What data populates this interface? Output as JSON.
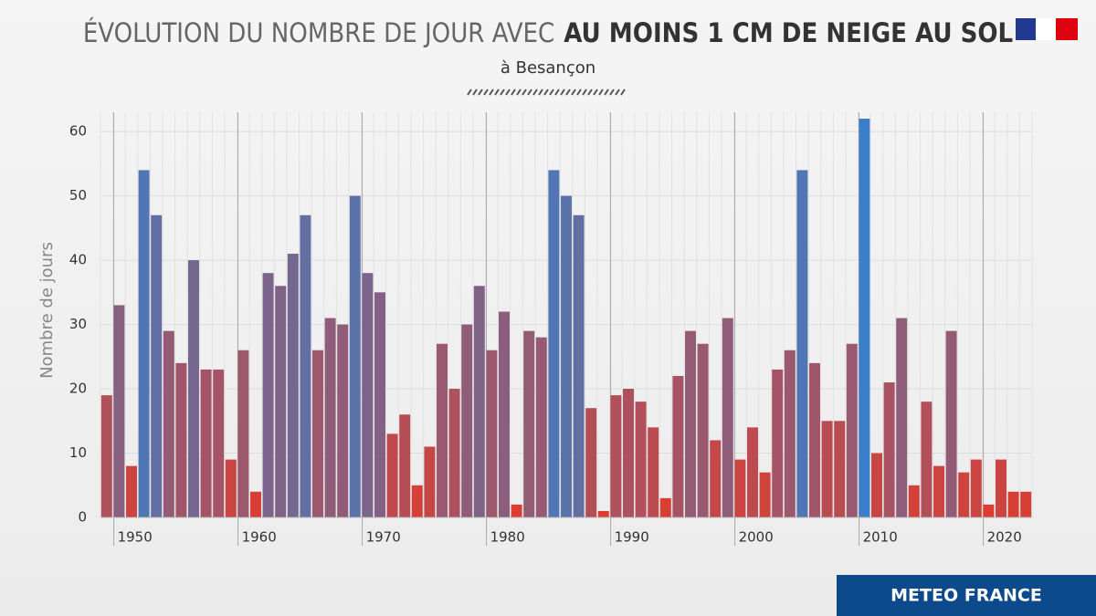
{
  "chart_data": {
    "type": "bar",
    "title_light": "ÉVOLUTION DU NOMBRE DE JOUR AVEC",
    "title_bold": "AU MOINS 1 CM DE NEIGE AU SOL",
    "subtitle": "à Besançon",
    "y_label": "Nombre de jours",
    "source": "METEO FRANCE",
    "categories": [
      null,
      "1950",
      null,
      null,
      null,
      null,
      null,
      null,
      null,
      null,
      null,
      "1960",
      null,
      null,
      null,
      null,
      null,
      null,
      null,
      null,
      null,
      "1970",
      null,
      null,
      null,
      null,
      null,
      null,
      null,
      null,
      null,
      "1980",
      null,
      null,
      null,
      null,
      null,
      null,
      null,
      null,
      null,
      "1990",
      null,
      null,
      null,
      null,
      null,
      null,
      null,
      null,
      null,
      "2000",
      null,
      null,
      null,
      null,
      null,
      null,
      null,
      null,
      null,
      "2010",
      null,
      null,
      null,
      null,
      null,
      null,
      null,
      null,
      null,
      "2020",
      null,
      null,
      null
    ],
    "values": [
      19,
      33,
      8,
      54,
      47,
      29,
      24,
      40,
      23,
      23,
      9,
      26,
      4,
      38,
      36,
      41,
      47,
      26,
      31,
      30,
      50,
      38,
      35,
      13,
      16,
      5,
      11,
      27,
      20,
      30,
      36,
      26,
      32,
      2,
      29,
      28,
      54,
      50,
      47,
      17,
      1,
      19,
      20,
      18,
      14,
      3,
      22,
      29,
      27,
      12,
      31,
      9,
      14,
      7,
      23,
      26,
      54,
      24,
      15,
      15,
      27,
      62,
      10,
      21,
      31,
      5,
      18,
      8,
      29,
      7,
      9,
      2,
      9,
      4,
      4
    ],
    "color_scale": [
      "#e23b2b",
      "#3b7fc9"
    ],
    "ylim": [
      0,
      63
    ],
    "yticks": [
      0,
      10,
      20,
      30,
      40,
      50,
      60
    ],
    "grid": true
  }
}
